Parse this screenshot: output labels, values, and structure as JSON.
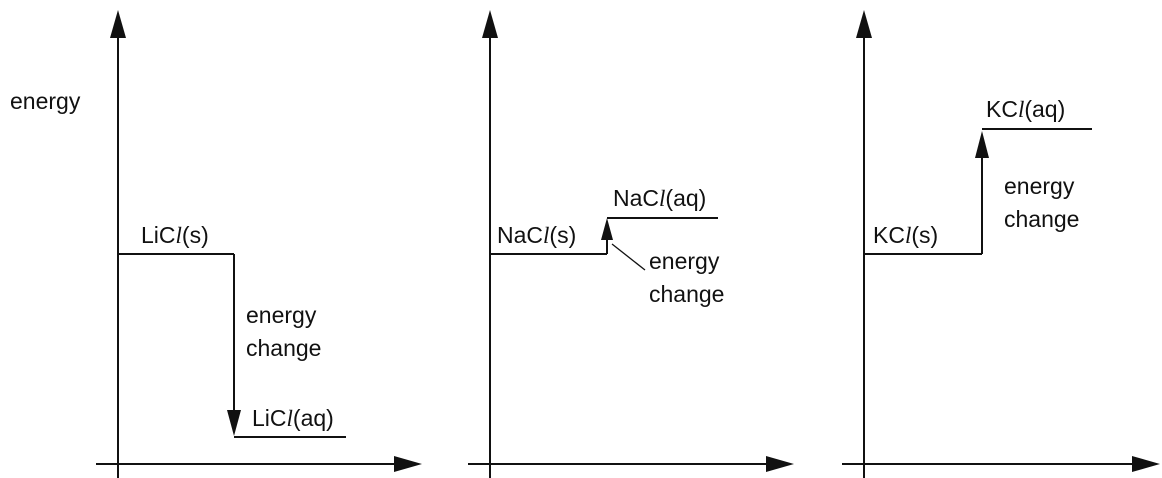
{
  "y_axis_label": "energy",
  "energy_change_label": [
    "energy",
    "change"
  ],
  "diagrams": [
    {
      "id": "licl",
      "initial": {
        "prefix": "LiC",
        "ell": "l",
        "state": "(s)"
      },
      "final": {
        "prefix": "LiC",
        "ell": "l",
        "state": "(aq)"
      },
      "direction": "down"
    },
    {
      "id": "nacl",
      "initial": {
        "prefix": "NaC",
        "ell": "l",
        "state": "(s)"
      },
      "final": {
        "prefix": "NaC",
        "ell": "l",
        "state": "(aq)"
      },
      "direction": "up"
    },
    {
      "id": "kcl",
      "initial": {
        "prefix": "KC",
        "ell": "l",
        "state": "(s)"
      },
      "final": {
        "prefix": "KC",
        "ell": "l",
        "state": "(aq)"
      },
      "direction": "up"
    }
  ]
}
